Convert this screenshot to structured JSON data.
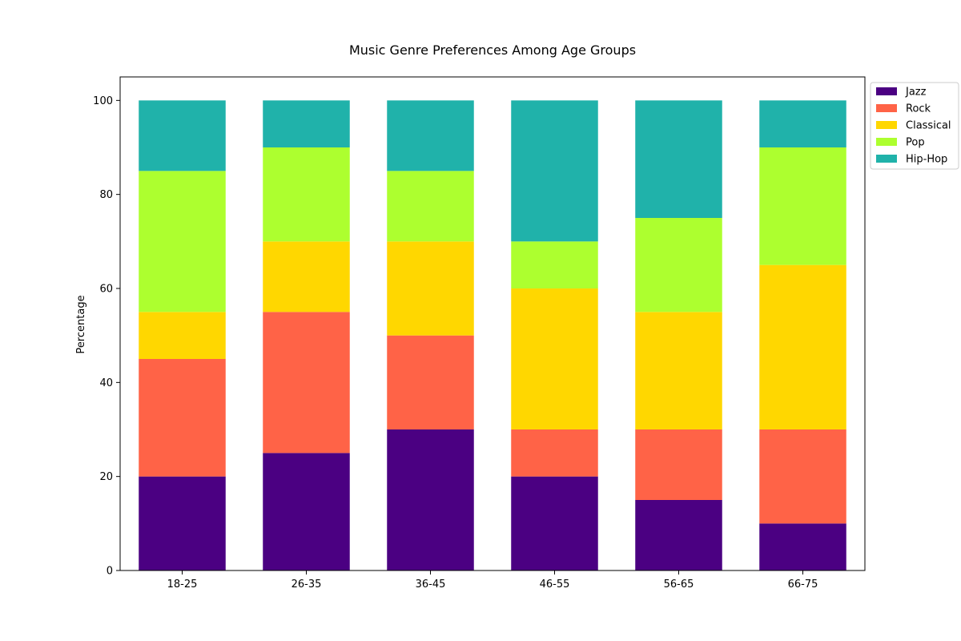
{
  "chart_data": {
    "type": "bar",
    "stacked": true,
    "title": "Music Genre Preferences Among Age Groups",
    "xlabel": "",
    "ylabel": "Percentage",
    "ylim": [
      0,
      105
    ],
    "yticks": [
      0,
      20,
      40,
      60,
      80,
      100
    ],
    "grid": false,
    "legend_position": "outside-top-right",
    "categories": [
      "18-25",
      "26-35",
      "36-45",
      "46-55",
      "56-65",
      "66-75"
    ],
    "series": [
      {
        "name": "Jazz",
        "color": "#4b0082",
        "values": [
          20,
          25,
          30,
          20,
          15,
          10
        ]
      },
      {
        "name": "Rock",
        "color": "#ff6347",
        "values": [
          25,
          30,
          20,
          10,
          15,
          20
        ]
      },
      {
        "name": "Classical",
        "color": "#ffd700",
        "values": [
          10,
          15,
          20,
          30,
          25,
          35
        ]
      },
      {
        "name": "Pop",
        "color": "#adff2f",
        "values": [
          30,
          20,
          15,
          10,
          20,
          25
        ]
      },
      {
        "name": "Hip-Hop",
        "color": "#20b2aa",
        "values": [
          15,
          10,
          15,
          30,
          25,
          10
        ]
      }
    ]
  }
}
